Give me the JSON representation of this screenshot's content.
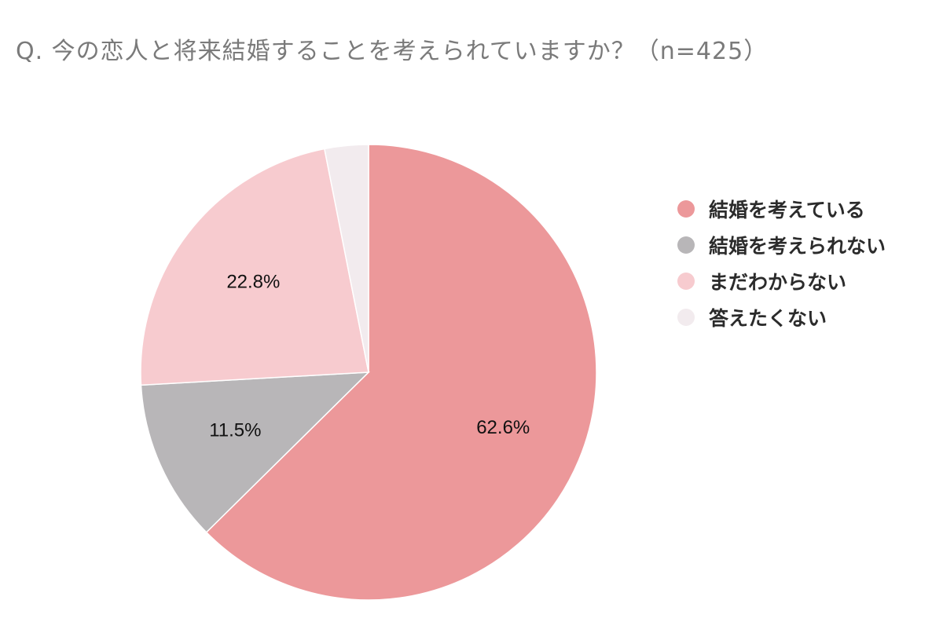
{
  "chart_data": {
    "type": "pie",
    "title": "Q. 今の恋人と将来結婚することを考えられていますか？（n=425）",
    "slices": [
      {
        "label": "結婚を考えている",
        "value": 62.6,
        "value_label": "62.6%",
        "color": "#ec989a"
      },
      {
        "label": "結婚を考えられない",
        "value": 11.5,
        "value_label": "11.5%",
        "color": "#b8b6b8"
      },
      {
        "label": "まだわからない",
        "value": 22.8,
        "value_label": "22.8%",
        "color": "#f7cbcf"
      },
      {
        "label": "答えたくない",
        "value": 3.1,
        "value_label": "",
        "color": "#f2ebee"
      }
    ],
    "legend_position": "right",
    "start_angle": "12 o'clock",
    "direction": "clockwise"
  }
}
